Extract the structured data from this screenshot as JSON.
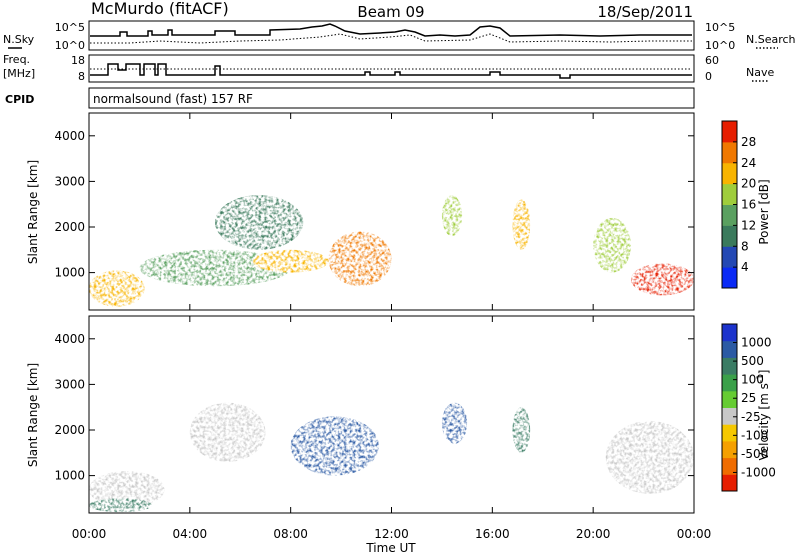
{
  "header": {
    "station": "McMurdo (fitACF)",
    "beam": "Beam 09",
    "date": "18/Sep/2011"
  },
  "sky_panel": {
    "left_label": "N.Sky",
    "left_ticks": [
      "10^5",
      "10^0"
    ],
    "right_ticks": [
      "10^5",
      "10^0"
    ],
    "right_label": "N.Search"
  },
  "freq_panel": {
    "left_label_1": "Freq.",
    "left_label_2": "[MHz]",
    "left_ticks": [
      "18",
      "8"
    ],
    "right_ticks": [
      "60",
      "0"
    ],
    "right_label": "Nave"
  },
  "cpid": {
    "label": "CPID",
    "value": "normalsound (fast) 157 RF"
  },
  "colors": {
    "power": [
      "#0a2af5",
      "#2348b4",
      "#3a7a5c",
      "#5aa060",
      "#9fcd3c",
      "#f8b400",
      "#f07800",
      "#e61e00"
    ],
    "velocity": [
      "#1c33cc",
      "#2b5aa4",
      "#3a7c64",
      "#3aa049",
      "#66cc33",
      "#c8c8c8",
      "#f5c800",
      "#f5a000",
      "#ef6c00",
      "#e61e00"
    ]
  },
  "chart_data": [
    {
      "type": "heatmap",
      "title": "",
      "xlabel": "Time UT",
      "ylabel": "Slant Range [km]",
      "x_ticks": [
        "00:00",
        "04:00",
        "08:00",
        "12:00",
        "16:00",
        "20:00",
        "00:00"
      ],
      "x_range_hours": [
        0,
        24
      ],
      "y_range": [
        180,
        4500
      ],
      "y_ticks": [
        1000,
        2000,
        3000,
        4000
      ],
      "colorbar": {
        "label": "Power [dB]",
        "ticks": [
          "28",
          "24",
          "20",
          "16",
          "12",
          "8",
          "4"
        ],
        "range": [
          0,
          30
        ]
      },
      "features": [
        {
          "start_hour": 0.0,
          "end_hour": 2.2,
          "range_min_km": 250,
          "range_max_km": 1050,
          "value": 22
        },
        {
          "start_hour": 2.0,
          "end_hour": 8.0,
          "range_min_km": 700,
          "range_max_km": 1500,
          "value": 14
        },
        {
          "start_hour": 5.0,
          "end_hour": 8.5,
          "range_min_km": 1500,
          "range_max_km": 2700,
          "value": 8
        },
        {
          "start_hour": 6.5,
          "end_hour": 9.5,
          "range_min_km": 1000,
          "range_max_km": 1500,
          "value": 22
        },
        {
          "start_hour": 9.5,
          "end_hour": 12.0,
          "range_min_km": 700,
          "range_max_km": 1900,
          "value": 26
        },
        {
          "start_hour": 14.0,
          "end_hour": 14.8,
          "range_min_km": 1800,
          "range_max_km": 2700,
          "value": 18
        },
        {
          "start_hour": 16.8,
          "end_hour": 17.5,
          "range_min_km": 1500,
          "range_max_km": 2600,
          "value": 20
        },
        {
          "start_hour": 20.0,
          "end_hour": 21.5,
          "range_min_km": 1000,
          "range_max_km": 2200,
          "value": 16
        },
        {
          "start_hour": 21.5,
          "end_hour": 24.0,
          "range_min_km": 500,
          "range_max_km": 1200,
          "value": 27
        }
      ]
    },
    {
      "type": "heatmap",
      "title": "",
      "xlabel": "Time UT",
      "ylabel": "Slant Range [km]",
      "x_ticks": [
        "00:00",
        "04:00",
        "08:00",
        "12:00",
        "16:00",
        "20:00",
        "00:00"
      ],
      "x_range_hours": [
        0,
        24
      ],
      "y_range": [
        180,
        4500
      ],
      "y_ticks": [
        1000,
        2000,
        3000,
        4000
      ],
      "colorbar": {
        "label": "Velocity [m s^-1]",
        "ticks": [
          "1000",
          "500",
          "100",
          "25",
          "-25",
          "-100",
          "-500",
          "-1000"
        ],
        "range": [
          -1000,
          1000
        ]
      },
      "features": [
        {
          "start_hour": 0.0,
          "end_hour": 3.0,
          "range_min_km": 300,
          "range_max_km": 1100,
          "value": -100
        },
        {
          "start_hour": 0.0,
          "end_hour": 2.5,
          "range_min_km": 200,
          "range_max_km": 500,
          "value": 100
        },
        {
          "start_hour": 4.0,
          "end_hour": 7.0,
          "range_min_km": 1300,
          "range_max_km": 2600,
          "value": -100
        },
        {
          "start_hour": 8.0,
          "end_hour": 11.5,
          "range_min_km": 1000,
          "range_max_km": 2300,
          "value": 500
        },
        {
          "start_hour": 14.0,
          "end_hour": 15.0,
          "range_min_km": 1700,
          "range_max_km": 2600,
          "value": 500
        },
        {
          "start_hour": 16.8,
          "end_hour": 17.5,
          "range_min_km": 1500,
          "range_max_km": 2500,
          "value": 100
        },
        {
          "start_hour": 20.5,
          "end_hour": 24.0,
          "range_min_km": 600,
          "range_max_km": 2200,
          "value": -100
        }
      ]
    }
  ]
}
